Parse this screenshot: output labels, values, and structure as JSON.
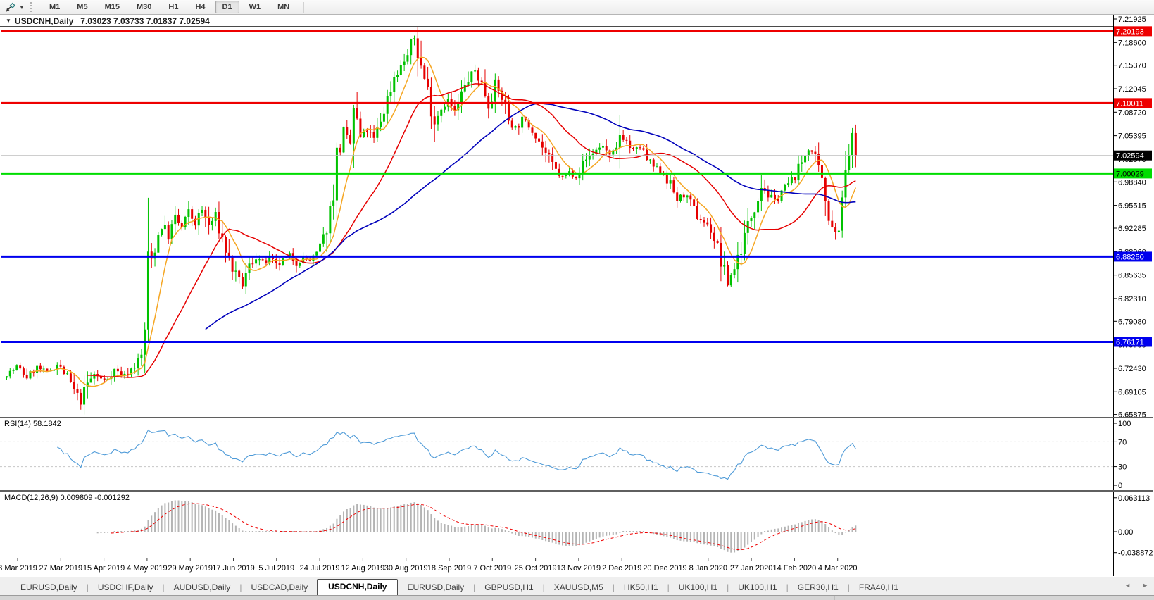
{
  "toolbar": {
    "timeframes": [
      "M1",
      "M5",
      "M15",
      "M30",
      "H1",
      "H4",
      "D1",
      "W1",
      "MN"
    ],
    "active_timeframe": "D1"
  },
  "chart": {
    "title": "USDCNH,Daily",
    "ohlc": "7.03023 7.03733 7.01837 7.02594",
    "current_price": "7.02594",
    "price_axis": {
      "max_price": 7.21925,
      "min_price": 6.65875,
      "ticks": [
        {
          "v": 7.21925,
          "label": "7.21925"
        },
        {
          "v": 7.186,
          "label": "7.18600"
        },
        {
          "v": 7.1537,
          "label": "7.15370"
        },
        {
          "v": 7.12045,
          "label": "7.12045"
        },
        {
          "v": 7.0872,
          "label": "7.08720"
        },
        {
          "v": 7.05395,
          "label": "7.05395"
        },
        {
          "v": 7.0207,
          "label": "7.02070"
        },
        {
          "v": 6.9884,
          "label": "6.98840"
        },
        {
          "v": 6.95515,
          "label": "6.95515"
        },
        {
          "v": 6.92285,
          "label": "6.92285"
        },
        {
          "v": 6.8896,
          "label": "6.88960"
        },
        {
          "v": 6.85635,
          "label": "6.85635"
        },
        {
          "v": 6.8231,
          "label": "6.82310"
        },
        {
          "v": 6.7908,
          "label": "6.79080"
        },
        {
          "v": 6.75755,
          "label": "6.75755"
        },
        {
          "v": 6.7243,
          "label": "6.72430"
        },
        {
          "v": 6.69105,
          "label": "6.69105"
        },
        {
          "v": 6.65875,
          "label": "6.65875"
        }
      ]
    },
    "levels": [
      {
        "price": 7.20193,
        "label": "7.20193",
        "line_color": "#ee0000",
        "width": 3,
        "badge_bg": "#ee0000",
        "badge_fg": "#ffffff"
      },
      {
        "price": 7.10011,
        "label": "7.10011",
        "line_color": "#ee0000",
        "width": 3,
        "badge_bg": "#ee0000",
        "badge_fg": "#ffffff"
      },
      {
        "price": 7.02594,
        "label": "7.02594",
        "line_color": "#bdbdbd",
        "width": 1,
        "badge_bg": "#000000",
        "badge_fg": "#ffffff"
      },
      {
        "price": 7.00029,
        "label": "7.00029",
        "line_color": "#00dd00",
        "width": 3,
        "badge_bg": "#00dd00",
        "badge_fg": "#000000"
      },
      {
        "price": 6.8825,
        "label": "6.88250",
        "line_color": "#0000ee",
        "width": 3,
        "badge_bg": "#0000ee",
        "badge_fg": "#ffffff"
      },
      {
        "price": 6.76171,
        "label": "6.76171",
        "line_color": "#0000ee",
        "width": 3,
        "badge_bg": "#0000ee",
        "badge_fg": "#ffffff"
      }
    ],
    "dates": [
      "8 Mar 2019",
      "27 Mar 2019",
      "15 Apr 2019",
      "4 May 2019",
      "29 May 2019",
      "17 Jun 2019",
      "5 Jul 2019",
      "24 Jul 2019",
      "12 Aug 2019",
      "30 Aug 2019",
      "18 Sep 2019",
      "7 Oct 2019",
      "25 Oct 2019",
      "13 Nov 2019",
      "2 Dec 2019",
      "20 Dec 2019",
      "8 Jan 2020",
      "27 Jan 2020",
      "14 Feb 2020",
      "4 Mar 2020"
    ],
    "series_anchors": [
      [
        0,
        6.715
      ],
      [
        3,
        6.726
      ],
      [
        6,
        6.712
      ],
      [
        9,
        6.725
      ],
      [
        12,
        6.718
      ],
      [
        15,
        6.73
      ],
      [
        18,
        6.712
      ],
      [
        20,
        6.692
      ],
      [
        22,
        6.678
      ],
      [
        24,
        6.702
      ],
      [
        26,
        6.716
      ],
      [
        29,
        6.706
      ],
      [
        32,
        6.722
      ],
      [
        35,
        6.714
      ],
      [
        38,
        6.728
      ],
      [
        40,
        6.742
      ],
      [
        41,
        6.78
      ],
      [
        42,
        6.858
      ],
      [
        44,
        6.898
      ],
      [
        46,
        6.93
      ],
      [
        48,
        6.912
      ],
      [
        50,
        6.936
      ],
      [
        52,
        6.924
      ],
      [
        54,
        6.944
      ],
      [
        56,
        6.93
      ],
      [
        58,
        6.948
      ],
      [
        60,
        6.926
      ],
      [
        62,
        6.94
      ],
      [
        64,
        6.908
      ],
      [
        66,
        6.878
      ],
      [
        68,
        6.854
      ],
      [
        70,
        6.843
      ],
      [
        72,
        6.868
      ],
      [
        74,
        6.884
      ],
      [
        76,
        6.872
      ],
      [
        78,
        6.88
      ],
      [
        80,
        6.868
      ],
      [
        82,
        6.877
      ],
      [
        84,
        6.884
      ],
      [
        86,
        6.874
      ],
      [
        88,
        6.881
      ],
      [
        90,
        6.877
      ],
      [
        92,
        6.886
      ],
      [
        94,
        6.908
      ],
      [
        96,
        6.948
      ],
      [
        98,
        7.022
      ],
      [
        100,
        7.056
      ],
      [
        102,
        7.042
      ],
      [
        103,
        7.092
      ],
      [
        105,
        7.05
      ],
      [
        107,
        7.062
      ],
      [
        109,
        7.048
      ],
      [
        111,
        7.076
      ],
      [
        113,
        7.106
      ],
      [
        115,
        7.138
      ],
      [
        117,
        7.152
      ],
      [
        119,
        7.168
      ],
      [
        121,
        7.193
      ],
      [
        123,
        7.152
      ],
      [
        125,
        7.118
      ],
      [
        127,
        7.076
      ],
      [
        129,
        7.094
      ],
      [
        131,
        7.104
      ],
      [
        133,
        7.086
      ],
      [
        135,
        7.112
      ],
      [
        137,
        7.134
      ],
      [
        139,
        7.146
      ],
      [
        141,
        7.128
      ],
      [
        143,
        7.1
      ],
      [
        145,
        7.124
      ],
      [
        147,
        7.108
      ],
      [
        149,
        7.078
      ],
      [
        151,
        7.064
      ],
      [
        153,
        7.076
      ],
      [
        155,
        7.068
      ],
      [
        157,
        7.056
      ],
      [
        159,
        7.038
      ],
      [
        161,
        7.02
      ],
      [
        163,
        7.004
      ],
      [
        165,
        6.994
      ],
      [
        167,
        7.002
      ],
      [
        169,
        6.997
      ],
      [
        171,
        7.014
      ],
      [
        173,
        7.026
      ],
      [
        175,
        7.034
      ],
      [
        177,
        7.04
      ],
      [
        179,
        7.022
      ],
      [
        181,
        7.034
      ],
      [
        182,
        7.058
      ],
      [
        184,
        7.046
      ],
      [
        186,
        7.03
      ],
      [
        188,
        7.038
      ],
      [
        190,
        7.02
      ],
      [
        192,
        7.01
      ],
      [
        195,
        7.0
      ],
      [
        197,
        6.984
      ],
      [
        199,
        6.964
      ],
      [
        201,
        6.97
      ],
      [
        203,
        6.958
      ],
      [
        205,
        6.94
      ],
      [
        207,
        6.932
      ],
      [
        209,
        6.92
      ],
      [
        211,
        6.895
      ],
      [
        213,
        6.856
      ],
      [
        214,
        6.845
      ],
      [
        216,
        6.868
      ],
      [
        218,
        6.896
      ],
      [
        220,
        6.926
      ],
      [
        222,
        6.956
      ],
      [
        224,
        6.986
      ],
      [
        226,
        6.97
      ],
      [
        228,
        6.96
      ],
      [
        230,
        6.976
      ],
      [
        232,
        6.986
      ],
      [
        234,
        6.996
      ],
      [
        236,
        7.016
      ],
      [
        238,
        7.04
      ],
      [
        240,
        7.02
      ],
      [
        242,
        6.984
      ],
      [
        244,
        6.944
      ],
      [
        246,
        6.916
      ],
      [
        247,
        6.926
      ],
      [
        248,
        6.956
      ],
      [
        249,
        6.996
      ],
      [
        250,
        7.028
      ],
      [
        251,
        7.046
      ],
      [
        252,
        7.026
      ]
    ]
  },
  "rsi": {
    "label": "RSI(14) 58.1842",
    "period": 14,
    "ticks": [
      {
        "v": 100,
        "label": "100"
      },
      {
        "v": 70,
        "label": "70"
      },
      {
        "v": 30,
        "label": "30"
      },
      {
        "v": 0,
        "label": "0"
      }
    ],
    "dashed_levels": [
      70,
      30
    ]
  },
  "macd": {
    "label": "MACD(12,26,9) 0.009809 -0.001292",
    "ticks": [
      {
        "v": 0.063113,
        "label": "0.063113"
      },
      {
        "v": 0,
        "label": "0.00"
      },
      {
        "v": -0.038872,
        "label": "-0.038872"
      }
    ],
    "max": 0.063113,
    "min": -0.038872
  },
  "tabs": {
    "items": [
      "EURUSD,Daily",
      "USDCHF,Daily",
      "AUDUSD,Daily",
      "USDCAD,Daily",
      "USDCNH,Daily",
      "EURUSD,Daily",
      "GBPUSD,H1",
      "XAUUSD,M5",
      "HK50,H1",
      "UK100,H1",
      "UK100,H1",
      "GER30,H1",
      "FRA40,H1"
    ],
    "active_index": 4
  },
  "colors": {
    "up": "#00c200",
    "down": "#e60000",
    "ma_fast": "#f5a623",
    "ma_mid": "#e60000",
    "ma_slow": "#0000bb",
    "rsi_line": "#4f9bd8",
    "macd_bar": "#b4b4b4",
    "macd_signal": "#ee0000",
    "axis_text": "#000000"
  }
}
